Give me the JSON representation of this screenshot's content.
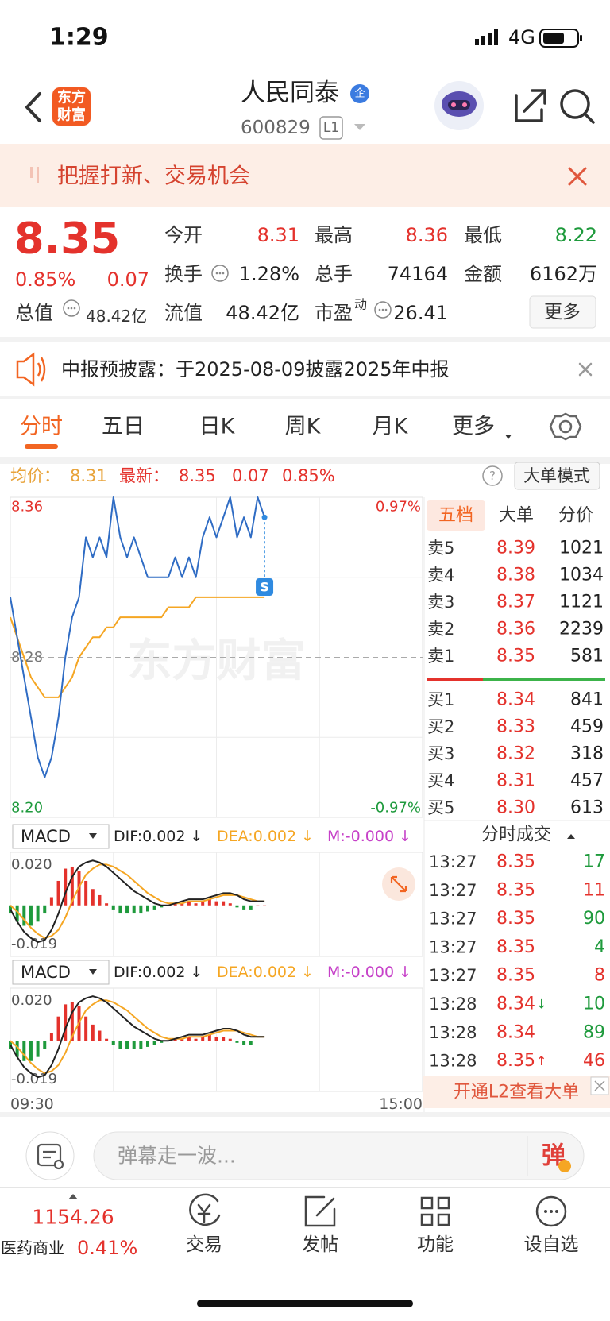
{
  "status_bar": {
    "time": "1:29",
    "network": "4G"
  },
  "header": {
    "logo_top": "东方",
    "logo_bottom": "财富",
    "title": "人民同泰",
    "badge": "企",
    "code": "600829",
    "level": "L1"
  },
  "banner": {
    "text": "把握打新、交易机会"
  },
  "quote": {
    "price": "8.35",
    "change_pct": "0.85%",
    "change": "0.07",
    "color": "#e4322c",
    "market_cap_label": "总值",
    "market_cap": "48.42亿",
    "more": "更多",
    "fields": [
      {
        "label": "今开",
        "value": "8.31",
        "color": "#e4322c"
      },
      {
        "label": "最高",
        "value": "8.36",
        "color": "#e4322c"
      },
      {
        "label": "最低",
        "value": "8.22",
        "color": "#1e9a3c"
      },
      {
        "label": "换手",
        "value": "1.28%",
        "color": "#222222"
      },
      {
        "label": "总手",
        "value": "74164",
        "color": "#222222"
      },
      {
        "label": "金额",
        "value": "6162万",
        "color": "#222222"
      },
      {
        "label": "流值",
        "value": "48.42亿",
        "color": "#222222"
      },
      {
        "label": "市盈",
        "sup": "动",
        "value": "26.41",
        "color": "#222222"
      }
    ]
  },
  "notice": {
    "text": "中报预披露：于2025-08-09披露2025年中报"
  },
  "tabs": {
    "items": [
      "分时",
      "五日",
      "日K",
      "周K",
      "月K",
      "更多"
    ],
    "active": 0
  },
  "info": {
    "avg_label": "均价：",
    "avg": "8.31",
    "last_label": "最新：",
    "last": "8.35",
    "change": "0.07",
    "change_pct": "0.85%",
    "help": "?",
    "mode": "大单模式"
  },
  "chart_data": [
    {
      "type": "line",
      "watermark": "东方财富",
      "annotation": "S",
      "up_color": "#e4322c",
      "down_color": "#1e9a3c",
      "x": [
        0,
        4,
        8,
        12,
        16,
        20,
        24,
        28,
        32,
        36,
        40,
        44,
        48,
        52,
        56,
        60,
        64,
        68,
        72,
        76,
        80,
        84,
        88,
        92,
        96,
        100,
        104,
        108,
        112,
        116,
        120,
        124,
        128,
        132,
        136,
        140,
        144,
        148
      ],
      "xlim": [
        0,
        240
      ],
      "xticks": [
        {
          "value": 0,
          "label": "09:30"
        },
        {
          "value": 240,
          "label": "15:00"
        }
      ],
      "ylim": [
        8.2,
        8.36
      ],
      "yticks": [
        {
          "value": 8.2,
          "label": "8.20"
        },
        8.28,
        8.36
      ],
      "y2lim": [
        -0.97,
        0.97
      ],
      "y2ticks": [
        {
          "value": -0.97,
          "label": "-0.97%"
        },
        {
          "value": 0.97,
          "label": "0.97%"
        }
      ],
      "series": [
        {
          "color": "#2f6cc4",
          "values": [
            8.31,
            8.29,
            8.27,
            8.25,
            8.23,
            8.22,
            8.23,
            8.25,
            8.28,
            8.3,
            8.31,
            8.34,
            8.33,
            8.34,
            8.33,
            8.36,
            8.34,
            8.33,
            8.34,
            8.33,
            8.32,
            8.32,
            8.32,
            8.32,
            8.33,
            8.32,
            8.33,
            8.32,
            8.34,
            8.35,
            8.34,
            8.35,
            8.36,
            8.34,
            8.35,
            8.34,
            8.36,
            8.35
          ]
        },
        {
          "color": "#f5a623",
          "values": [
            8.3,
            8.29,
            8.28,
            8.27,
            8.265,
            8.26,
            8.26,
            8.26,
            8.265,
            8.27,
            8.28,
            8.285,
            8.29,
            8.29,
            8.295,
            8.295,
            8.3,
            8.3,
            8.3,
            8.3,
            8.3,
            8.3,
            8.3,
            8.305,
            8.305,
            8.305,
            8.305,
            8.31,
            8.31,
            8.31,
            8.31,
            8.31,
            8.31,
            8.31,
            8.31,
            8.31,
            8.31,
            8.31
          ]
        }
      ]
    },
    {
      "type": "macd",
      "indicator": "MACD",
      "x": [
        0,
        4,
        8,
        12,
        16,
        20,
        24,
        28,
        32,
        36,
        40,
        44,
        48,
        52,
        56,
        60,
        64,
        68,
        72,
        76,
        80,
        84,
        88,
        92,
        96,
        100,
        104,
        108,
        112,
        116,
        120,
        124,
        128,
        132,
        136,
        140,
        144,
        148
      ],
      "xlim": [
        0,
        240
      ],
      "ylim": [
        -0.025,
        0.026
      ],
      "yticks": [
        {
          "value": 0.02,
          "label": "0.020"
        },
        -0.019
      ],
      "series": [
        {
          "name": "DIF:0.002 ↓",
          "color": "#222222",
          "values": [
            -0.002,
            -0.008,
            -0.013,
            -0.016,
            -0.018,
            -0.017,
            -0.012,
            -0.004,
            0.006,
            0.014,
            0.019,
            0.021,
            0.022,
            0.021,
            0.019,
            0.016,
            0.013,
            0.01,
            0.007,
            0.005,
            0.003,
            0.001,
            0,
            0,
            0.001,
            0.002,
            0.003,
            0.003,
            0.003,
            0.004,
            0.005,
            0.006,
            0.006,
            0.005,
            0.003,
            0.002,
            0.002,
            0.002
          ]
        },
        {
          "name": "DEA:0.002 ↓",
          "color": "#f5a623",
          "values": [
            0,
            -0.003,
            -0.007,
            -0.011,
            -0.014,
            -0.016,
            -0.015,
            -0.012,
            -0.006,
            0.002,
            0.009,
            0.015,
            0.018,
            0.02,
            0.02,
            0.019,
            0.017,
            0.015,
            0.012,
            0.009,
            0.006,
            0.004,
            0.002,
            0.001,
            0.001,
            0.001,
            0.002,
            0.002,
            0.002,
            0.003,
            0.004,
            0.005,
            0.005,
            0.005,
            0.004,
            0.003,
            0.002,
            0.002
          ]
        },
        {
          "name": "M:-0.000 ↓",
          "color": "#c640c8",
          "up_color": "#e4322c",
          "down_color": "#1e9a3c",
          "values": [
            -0.004,
            -0.008,
            -0.01,
            -0.01,
            -0.008,
            -0.004,
            0.004,
            0.012,
            0.018,
            0.019,
            0.017,
            0.012,
            0.008,
            0.005,
            0.001,
            -0.002,
            -0.004,
            -0.004,
            -0.004,
            -0.004,
            -0.003,
            -0.002,
            -0.001,
            0,
            0.001,
            0.001,
            0.002,
            0.001,
            0.002,
            0.003,
            0.002,
            0.002,
            0.001,
            -0.001,
            -0.002,
            -0.002,
            0,
            0
          ]
        }
      ]
    }
  ],
  "order_book": {
    "tabs": [
      "五档",
      "大单",
      "分价"
    ],
    "active": 0,
    "price_color": "#e4322c",
    "asks": [
      [
        "卖5",
        "8.39",
        "1021"
      ],
      [
        "卖4",
        "8.38",
        "1034"
      ],
      [
        "卖3",
        "8.37",
        "1121"
      ],
      [
        "卖2",
        "8.36",
        "2239"
      ],
      [
        "卖1",
        "8.35",
        "581"
      ]
    ],
    "bids": [
      [
        "买1",
        "8.34",
        "841"
      ],
      [
        "买2",
        "8.33",
        "459"
      ],
      [
        "买3",
        "8.32",
        "318"
      ],
      [
        "买4",
        "8.31",
        "457"
      ],
      [
        "买5",
        "8.30",
        "613"
      ]
    ]
  },
  "trades": {
    "title": "分时成交",
    "price_color": "#e4322c",
    "rows": [
      {
        "time": "13:27",
        "price": "8.35",
        "volume": "17",
        "color": "#1e9a3c"
      },
      {
        "time": "13:27",
        "price": "8.35",
        "volume": "11",
        "color": "#e4322c"
      },
      {
        "time": "13:27",
        "price": "8.35",
        "volume": "90",
        "color": "#1e9a3c"
      },
      {
        "time": "13:27",
        "price": "8.35",
        "volume": "4",
        "color": "#1e9a3c"
      },
      {
        "time": "13:27",
        "price": "8.35",
        "volume": "8",
        "color": "#e4322c"
      },
      {
        "time": "13:28",
        "price": "8.34",
        "arrow": "↓",
        "arrow_color": "#1e9a3c",
        "volume": "10",
        "color": "#1e9a3c"
      },
      {
        "time": "13:28",
        "price": "8.34",
        "volume": "89",
        "color": "#1e9a3c"
      },
      {
        "time": "13:28",
        "price": "8.35",
        "arrow": "↑",
        "arrow_color": "#e4322c",
        "volume": "46",
        "color": "#e4322c"
      }
    ]
  },
  "l2_banner": {
    "text": "开通L2查看大单"
  },
  "comment": {
    "placeholder": "弹幕走一波...",
    "button": "弹"
  },
  "bottom_nav": {
    "index_value": "1154.26",
    "index_name": "医药商业",
    "index_change": "0.41%",
    "items": [
      "交易",
      "发帖",
      "功能",
      "设自选"
    ]
  }
}
